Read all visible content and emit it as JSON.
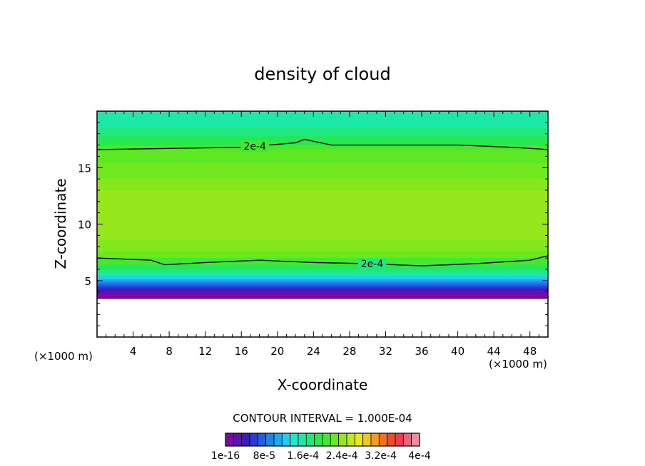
{
  "chart_data": {
    "type": "heatmap",
    "title": "density of cloud",
    "xlabel": "X-coordinate",
    "ylabel": "Z-coordinate",
    "x_unit": "(×1000 m)",
    "y_unit": "(×1000 m)",
    "xlim": [
      0,
      50
    ],
    "ylim": [
      0,
      20
    ],
    "x_ticks": [
      4,
      8,
      12,
      16,
      20,
      24,
      28,
      32,
      36,
      40,
      44,
      48
    ],
    "y_ticks": [
      5,
      10,
      15
    ],
    "contour_interval_text": "CONTOUR INTERVAL = 1.000E-04",
    "contour_lines": [
      {
        "label": "2e-4",
        "value": 0.0002,
        "label_x": 17.5,
        "z_at_x": [
          [
            0,
            16.6
          ],
          [
            8,
            16.7
          ],
          [
            16,
            16.8
          ],
          [
            22,
            17.2
          ],
          [
            23,
            17.5
          ],
          [
            26,
            17.0
          ],
          [
            32,
            17.0
          ],
          [
            40,
            17.0
          ],
          [
            46,
            16.8
          ],
          [
            50,
            16.6
          ]
        ]
      },
      {
        "label": "2e-4",
        "value": 0.0002,
        "label_x": 30.5,
        "z_at_x": [
          [
            0,
            7.0
          ],
          [
            6,
            6.8
          ],
          [
            7.5,
            6.4
          ],
          [
            12,
            6.6
          ],
          [
            18,
            6.8
          ],
          [
            24,
            6.6
          ],
          [
            30,
            6.5
          ],
          [
            36,
            6.3
          ],
          [
            42,
            6.5
          ],
          [
            48,
            6.8
          ],
          [
            50,
            7.2
          ]
        ]
      }
    ],
    "colorbar": {
      "min": 1e-16,
      "max": 0.0004,
      "tick_labels": [
        "1e-16",
        "8e-5",
        "1.6e-4",
        "2.4e-4",
        "3.2e-4",
        "4e-4"
      ],
      "colors": [
        "#7b0aa5",
        "#5c12b0",
        "#3a1cc0",
        "#2a3ad4",
        "#1f5ee6",
        "#1d84ee",
        "#1ea8f0",
        "#1fd0ee",
        "#1de8d0",
        "#1de8a8",
        "#1fe97e",
        "#28e852",
        "#44e82e",
        "#6ae81e",
        "#96e81c",
        "#c4e81c",
        "#e8e81c",
        "#f0c81c",
        "#f49c1c",
        "#f4701c",
        "#f44a28",
        "#f43a4a",
        "#f4607a",
        "#f48aa0"
      ]
    },
    "bands": [
      {
        "z_bottom": 18.5,
        "z_top": 20.0,
        "color": "#1de8a8"
      },
      {
        "z_bottom": 17.8,
        "z_top": 18.5,
        "color": "#1fe97e"
      },
      {
        "z_bottom": 17.0,
        "z_top": 17.8,
        "color": "#28e852"
      },
      {
        "z_bottom": 16.6,
        "z_top": 17.0,
        "color": "#44e82e"
      },
      {
        "z_bottom": 15.4,
        "z_top": 16.6,
        "color": "#5ee824"
      },
      {
        "z_bottom": 14.0,
        "z_top": 15.4,
        "color": "#72e81e"
      },
      {
        "z_bottom": 13.0,
        "z_top": 14.0,
        "color": "#86e81c"
      },
      {
        "z_bottom": 8.6,
        "z_top": 13.0,
        "color": "#96e81c"
      },
      {
        "z_bottom": 7.6,
        "z_top": 8.6,
        "color": "#80e81c"
      },
      {
        "z_bottom": 7.0,
        "z_top": 7.6,
        "color": "#6ae81e"
      },
      {
        "z_bottom": 6.4,
        "z_top": 7.0,
        "color": "#44e82e"
      },
      {
        "z_bottom": 6.0,
        "z_top": 6.4,
        "color": "#28e852"
      },
      {
        "z_bottom": 5.7,
        "z_top": 6.0,
        "color": "#1fe97e"
      },
      {
        "z_bottom": 5.4,
        "z_top": 5.7,
        "color": "#1de8a8"
      },
      {
        "z_bottom": 5.1,
        "z_top": 5.4,
        "color": "#1fd0ee"
      },
      {
        "z_bottom": 4.9,
        "z_top": 5.1,
        "color": "#1ea8f0"
      },
      {
        "z_bottom": 4.7,
        "z_top": 4.9,
        "color": "#1d84ee"
      },
      {
        "z_bottom": 4.5,
        "z_top": 4.7,
        "color": "#1f5ee6"
      },
      {
        "z_bottom": 4.3,
        "z_top": 4.5,
        "color": "#2a3ad4"
      },
      {
        "z_bottom": 4.1,
        "z_top": 4.3,
        "color": "#3a1cc0"
      },
      {
        "z_bottom": 3.8,
        "z_top": 4.1,
        "color": "#5c12b0"
      },
      {
        "z_bottom": 3.4,
        "z_top": 3.8,
        "color": "#7b0aa5"
      }
    ]
  }
}
